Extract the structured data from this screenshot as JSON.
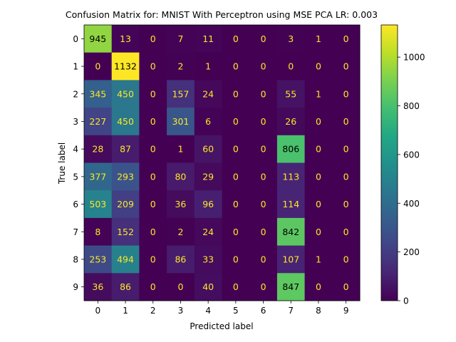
{
  "chart_data": {
    "type": "heatmap",
    "title": "Confusion Matrix for: MNIST With Perceptron using MSE PCA LR: 0.003",
    "xlabel": "Predicted label",
    "ylabel": "True label",
    "x_categories": [
      "0",
      "1",
      "2",
      "3",
      "4",
      "5",
      "6",
      "7",
      "8",
      "9"
    ],
    "y_categories": [
      "0",
      "1",
      "2",
      "3",
      "4",
      "5",
      "6",
      "7",
      "8",
      "9"
    ],
    "values": [
      [
        945,
        13,
        0,
        7,
        11,
        0,
        0,
        3,
        1,
        0
      ],
      [
        0,
        1132,
        0,
        2,
        1,
        0,
        0,
        0,
        0,
        0
      ],
      [
        345,
        450,
        0,
        157,
        24,
        0,
        0,
        55,
        1,
        0
      ],
      [
        227,
        450,
        0,
        301,
        6,
        0,
        0,
        26,
        0,
        0
      ],
      [
        28,
        87,
        0,
        1,
        60,
        0,
        0,
        806,
        0,
        0
      ],
      [
        377,
        293,
        0,
        80,
        29,
        0,
        0,
        113,
        0,
        0
      ],
      [
        503,
        209,
        0,
        36,
        96,
        0,
        0,
        114,
        0,
        0
      ],
      [
        8,
        152,
        0,
        2,
        24,
        0,
        0,
        842,
        0,
        0
      ],
      [
        253,
        494,
        0,
        86,
        33,
        0,
        0,
        107,
        1,
        0
      ],
      [
        36,
        86,
        0,
        0,
        40,
        0,
        0,
        847,
        0,
        0
      ]
    ],
    "value_range": [
      0,
      1132
    ],
    "colormap": "viridis",
    "colorbar_ticks": [
      0,
      200,
      400,
      600,
      800,
      1000
    ],
    "grid": false,
    "legend": "colorbar-right",
    "text_colors": {
      "low": "#fde725",
      "high": "#000000"
    }
  }
}
